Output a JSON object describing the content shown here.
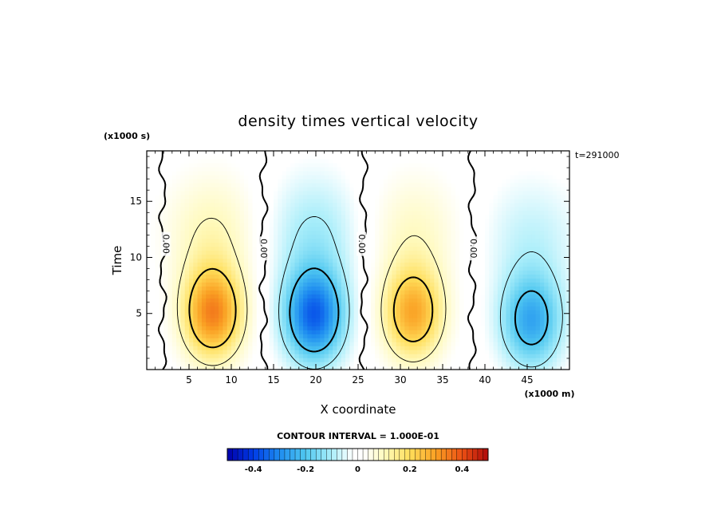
{
  "chart_data": {
    "type": "heatmap",
    "title": "density times vertical velocity",
    "xlabel": "X coordinate",
    "ylabel": "Time",
    "x_unit": "(x1000 m)",
    "y_unit": "(x1000 s)",
    "time_label": "t=291000",
    "xlim": [
      0,
      50
    ],
    "ylim": [
      0,
      19.5
    ],
    "x_ticks": [
      5,
      10,
      15,
      20,
      25,
      30,
      35,
      40,
      45
    ],
    "y_ticks": [
      5,
      10,
      15
    ],
    "zero_contour_label": "0.00",
    "contour_interval_text": "CONTOUR INTERVAL = 1.000E-01",
    "colorbar": {
      "range": [
        -0.5,
        0.5
      ],
      "tick_values": [
        -0.4,
        -0.2,
        0,
        0.2,
        0.4
      ],
      "tick_labels": [
        "-0.4",
        "-0.2",
        "0",
        "0.2",
        "0.4"
      ]
    },
    "cells": [
      {
        "x": 7.8,
        "y": 5.0,
        "peak": 0.33
      },
      {
        "x": 19.8,
        "y": 4.8,
        "peak": -0.35
      },
      {
        "x": 31.5,
        "y": 5.0,
        "peak": 0.28
      },
      {
        "x": 45.5,
        "y": 4.3,
        "peak": -0.25
      }
    ]
  }
}
